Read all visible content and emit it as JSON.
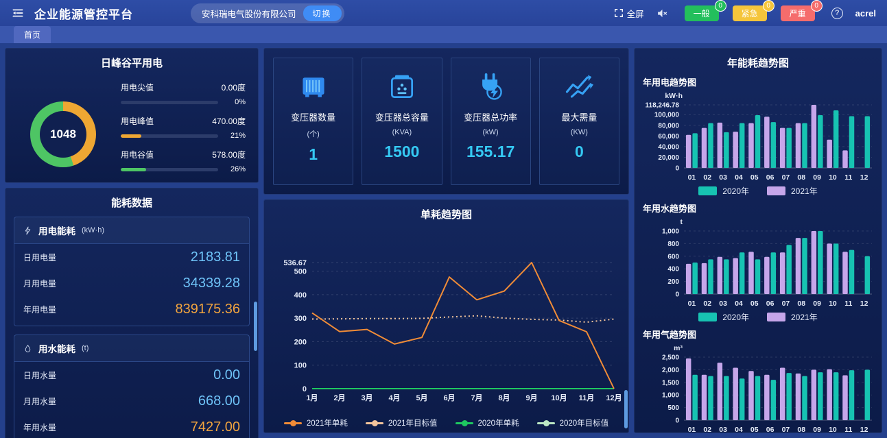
{
  "header": {
    "title": "企业能源管控平台",
    "company": "安科瑞电气股份有限公司",
    "switch_label": "切换",
    "fullscreen_label": "全屏",
    "alarms": [
      {
        "label": "一般",
        "count": "0",
        "color": "#23bf5c"
      },
      {
        "label": "紧急",
        "count": "0",
        "color": "#f5c53b"
      },
      {
        "label": "严重",
        "count": "0",
        "color": "#f56c6c"
      }
    ],
    "username": "acrel"
  },
  "tabs": {
    "home": "首页"
  },
  "peak_valley": {
    "title": "日峰谷平用电",
    "donut_total": "1048",
    "donut": {
      "orange_color": "#eea733",
      "green_color": "#4ec564",
      "orange_pct": 44.85,
      "green_pct": 55.15
    },
    "rows": [
      {
        "label": "用电尖值",
        "value": "0.00度",
        "pct": "0%",
        "pct_num": 0,
        "color": "#8a93a8"
      },
      {
        "label": "用电峰值",
        "value": "470.00度",
        "pct": "21%",
        "pct_num": 21,
        "color": "#eea733"
      },
      {
        "label": "用电谷值",
        "value": "578.00度",
        "pct": "26%",
        "pct_num": 26,
        "color": "#4ec564"
      }
    ]
  },
  "stat_cards": [
    {
      "icon": "transformer-icon",
      "label": "变压器数量",
      "unit": "(个)",
      "value": "1"
    },
    {
      "icon": "transformer-capacity-icon",
      "label": "变压器总容量",
      "unit": "(KVA)",
      "value": "1500"
    },
    {
      "icon": "transformer-power-icon",
      "label": "变压器总功率",
      "unit": "(kW)",
      "value": "155.17"
    },
    {
      "icon": "max-demand-icon",
      "label": "最大需量",
      "unit": "(KW)",
      "value": "0"
    }
  ],
  "colors": {
    "stat_value": "#35c9f3"
  },
  "energy_data": {
    "title": "能耗数据",
    "sections": [
      {
        "icon": "lightning-icon",
        "name": "用电能耗",
        "unit": "(kW·h)",
        "rows": [
          {
            "label": "日用电量",
            "value": "2183.81",
            "color": "#6fc3f8"
          },
          {
            "label": "月用电量",
            "value": "34339.28",
            "color": "#6fc3f8"
          },
          {
            "label": "年用电量",
            "value": "839175.36",
            "color": "#f2a43e"
          }
        ]
      },
      {
        "icon": "water-drop-icon",
        "name": "用水能耗",
        "unit": "(t)",
        "rows": [
          {
            "label": "日用水量",
            "value": "0.00",
            "color": "#6fc3f8"
          },
          {
            "label": "月用水量",
            "value": "668.00",
            "color": "#6fc3f8"
          },
          {
            "label": "年用水量",
            "value": "7427.00",
            "color": "#f2a43e"
          }
        ]
      }
    ]
  },
  "right_panel": {
    "title": "年能耗趋势图"
  },
  "chart_data": [
    {
      "id": "unit-consumption",
      "type": "line",
      "title": "单耗趋势图",
      "x": [
        "1月",
        "2月",
        "3月",
        "4月",
        "5月",
        "6月",
        "7月",
        "8月",
        "9月",
        "10月",
        "11月",
        "12月"
      ],
      "ylim": [
        0,
        536.67
      ],
      "yticks": [
        0,
        100,
        200,
        300,
        400,
        500,
        536.67
      ],
      "ytick_labels": [
        "0",
        "100",
        "200",
        "300",
        "400",
        "500",
        "536.67"
      ],
      "grid": true,
      "legend_position": "bottom",
      "series": [
        {
          "name": "2021年单耗",
          "color": "#f18c37",
          "style": "solid",
          "values": [
            322,
            243,
            252,
            190,
            218,
            475,
            378,
            415,
            536.67,
            290,
            242,
            0
          ]
        },
        {
          "name": "2021年目标值",
          "color": "#f4c59c",
          "style": "dotted",
          "values": [
            296,
            297,
            298,
            298,
            299,
            305,
            310,
            300,
            295,
            292,
            283,
            296
          ]
        },
        {
          "name": "2020年单耗",
          "color": "#1ec860",
          "style": "solid",
          "values": [
            0,
            0,
            0,
            0,
            0,
            0,
            0,
            0,
            0,
            0,
            0,
            0
          ]
        },
        {
          "name": "2020年目标值",
          "color": "#bce8c4",
          "style": "solid",
          "values": [
            0,
            0,
            0,
            0,
            0,
            0,
            0,
            0,
            0,
            0,
            0,
            0
          ]
        }
      ]
    },
    {
      "id": "electricity-trend",
      "type": "bar",
      "title": "年用电趋势图",
      "unit": "kW·h",
      "categories": [
        "01",
        "02",
        "03",
        "04",
        "05",
        "06",
        "07",
        "08",
        "09",
        "10",
        "11",
        "12"
      ],
      "ylim": [
        0,
        118246.78
      ],
      "yticks": [
        0,
        20000,
        40000,
        60000,
        80000,
        100000,
        118246.78
      ],
      "ytick_labels": [
        "0",
        "20,000",
        "40,000",
        "60,000",
        "80,000",
        "100,000",
        "118,246.78"
      ],
      "series": [
        {
          "name": "2021年",
          "color": "#c6a6ea",
          "values": [
            62000,
            75000,
            85000,
            68000,
            84000,
            96000,
            75000,
            84000,
            118246.78,
            53000,
            33000,
            null
          ]
        },
        {
          "name": "2020年",
          "color": "#17c3b2",
          "values": [
            65000,
            84000,
            67000,
            84000,
            99000,
            86000,
            75000,
            84000,
            99000,
            108000,
            97000,
            97000
          ]
        }
      ],
      "legend": [
        {
          "name": "2020年",
          "color": "#17c3b2"
        },
        {
          "name": "2021年",
          "color": "#c6a6ea"
        }
      ]
    },
    {
      "id": "water-trend",
      "type": "bar",
      "title": "年用水趋势图",
      "unit": "t",
      "categories": [
        "01",
        "02",
        "03",
        "04",
        "05",
        "06",
        "07",
        "08",
        "09",
        "10",
        "11",
        "12"
      ],
      "ylim": [
        0,
        1000
      ],
      "yticks": [
        0,
        200,
        400,
        600,
        800,
        1000
      ],
      "ytick_labels": [
        "0",
        "200",
        "400",
        "600",
        "800",
        "1,000"
      ],
      "series": [
        {
          "name": "2021年",
          "color": "#c6a6ea",
          "values": [
            480,
            490,
            590,
            570,
            670,
            590,
            660,
            890,
            1000,
            800,
            670,
            null
          ]
        },
        {
          "name": "2020年",
          "color": "#17c3b2",
          "values": [
            500,
            550,
            550,
            660,
            550,
            660,
            780,
            890,
            1000,
            800,
            700,
            600
          ]
        }
      ],
      "legend": [
        {
          "name": "2020年",
          "color": "#17c3b2"
        },
        {
          "name": "2021年",
          "color": "#c6a6ea"
        }
      ]
    },
    {
      "id": "gas-trend",
      "type": "bar",
      "title": "年用气趋势图",
      "unit": "m³",
      "categories": [
        "01",
        "02",
        "03",
        "04",
        "05",
        "06",
        "07",
        "08",
        "09",
        "10",
        "11",
        "12"
      ],
      "ylim": [
        0,
        2500
      ],
      "yticks": [
        0,
        500,
        1000,
        1500,
        2000,
        2500
      ],
      "ytick_labels": [
        "0",
        "500",
        "1,000",
        "1,500",
        "2,000",
        "2,500"
      ],
      "series": [
        {
          "name": "2021年",
          "color": "#c6a6ea",
          "values": [
            2450,
            1800,
            2280,
            2080,
            1950,
            1800,
            2080,
            1850,
            2000,
            2020,
            1780,
            null
          ]
        },
        {
          "name": "2020年",
          "color": "#17c3b2",
          "values": [
            1800,
            1750,
            1750,
            1650,
            1750,
            1600,
            1870,
            1750,
            1900,
            1900,
            1980,
            2000
          ]
        }
      ],
      "legend": [
        {
          "name": "2020年",
          "color": "#17c3b2"
        },
        {
          "name": "2021年",
          "color": "#c6a6ea"
        }
      ]
    }
  ]
}
